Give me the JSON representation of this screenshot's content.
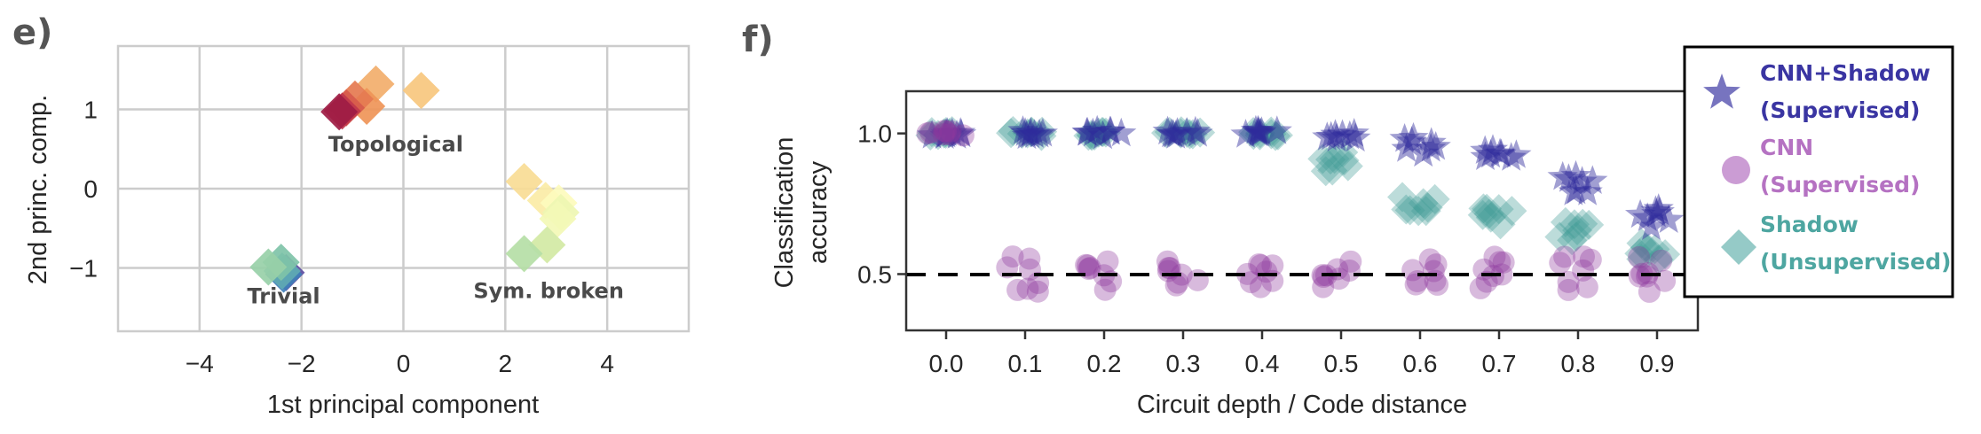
{
  "chart_data": [
    {
      "panel": "e)",
      "type": "scatter",
      "title": "",
      "xlabel": "1st principal component",
      "ylabel": "2nd princ. comp.",
      "xlim": [
        -5.6,
        5.6
      ],
      "ylim": [
        -1.8,
        1.8
      ],
      "xticks": [
        -4,
        -2,
        0,
        2,
        4
      ],
      "xtick_labels": [
        "−4",
        "−2",
        "0",
        "2",
        "4"
      ],
      "yticks": [
        1,
        0,
        -1
      ],
      "ytick_labels": [
        "1",
        "0",
        "−1"
      ],
      "grid": true,
      "marker": "diamond",
      "annotations": [
        {
          "text": "Topological",
          "x": -0.15,
          "y": 0.47
        },
        {
          "text": "Trivial",
          "x": -2.35,
          "y": -1.45
        },
        {
          "text": "Sym. broken",
          "x": 2.85,
          "y": -1.38
        }
      ],
      "clusters": [
        {
          "name": "Trivial",
          "points": [
            {
              "x": -2.3,
              "y": -1.06,
              "color": "#5e4fa2"
            },
            {
              "x": -2.35,
              "y": -1.08,
              "color": "#3f7fb8"
            },
            {
              "x": -2.38,
              "y": -1.04,
              "color": "#5fa9b2"
            },
            {
              "x": -2.4,
              "y": -0.93,
              "color": "#7fc3a8"
            },
            {
              "x": -2.65,
              "y": -0.99,
              "color": "#98d0a8"
            }
          ]
        },
        {
          "name": "Topological",
          "points": [
            {
              "x": 0.35,
              "y": 1.24,
              "color": "#f7c77e"
            },
            {
              "x": -0.54,
              "y": 1.32,
              "color": "#f2ae6b"
            },
            {
              "x": -0.72,
              "y": 1.04,
              "color": "#ef9558"
            },
            {
              "x": -0.95,
              "y": 1.13,
              "color": "#e57a50"
            },
            {
              "x": -1.12,
              "y": 1.02,
              "color": "#d75a4c"
            },
            {
              "x": -1.2,
              "y": 0.98,
              "color": "#c0374c"
            },
            {
              "x": -1.26,
              "y": 0.97,
              "color": "#9e1c44"
            }
          ]
        },
        {
          "name": "Sym. broken",
          "points": [
            {
              "x": 2.37,
              "y": 0.09,
              "color": "#f9dc95"
            },
            {
              "x": 2.79,
              "y": -0.15,
              "color": "#fbeba6"
            },
            {
              "x": 3.05,
              "y": -0.18,
              "color": "#fdfbbd"
            },
            {
              "x": 3.09,
              "y": -0.3,
              "color": "#eef6b2"
            },
            {
              "x": 3.03,
              "y": -0.38,
              "color": "#f3f9b6"
            },
            {
              "x": 2.82,
              "y": -0.71,
              "color": "#d2e9a4"
            },
            {
              "x": 2.37,
              "y": -0.82,
              "color": "#b5dea6"
            }
          ]
        }
      ]
    },
    {
      "panel": "f)",
      "type": "scatter",
      "title": "",
      "xlabel": "Circuit depth / Code distance",
      "ylabel": "Classification accuracy",
      "ylabel_lines": [
        "Classification",
        "accuracy"
      ],
      "x": [
        0.0,
        0.1,
        0.2,
        0.3,
        0.4,
        0.5,
        0.6,
        0.7,
        0.8,
        0.9
      ],
      "xtick_labels": [
        "0.0",
        "0.1",
        "0.2",
        "0.3",
        "0.4",
        "0.5",
        "0.6",
        "0.7",
        "0.8",
        "0.9"
      ],
      "yticks": [
        1.0,
        0.5
      ],
      "ytick_labels": [
        "1.0",
        "0.5"
      ],
      "ylim": [
        0.3,
        1.15
      ],
      "grid": false,
      "reference_line": {
        "y": 0.5,
        "style": "dashed",
        "color": "#000000"
      },
      "legend_position": "upper right, outside",
      "series": [
        {
          "name": "CNN+Shadow (Supervised)",
          "label_lines": [
            "CNN+Shadow",
            "(Supervised)"
          ],
          "marker": "star",
          "color": "#2e2a9c",
          "text_color": "#3a35a2",
          "values": [
            1.0,
            1.0,
            1.0,
            1.0,
            1.0,
            0.99,
            0.96,
            0.93,
            0.82,
            0.7
          ]
        },
        {
          "name": "CNN (Supervised)",
          "label_lines": [
            "CNN",
            "(Supervised)"
          ],
          "marker": "circle",
          "color": "#8e3a9e",
          "text_color": "#b572c2",
          "values": [
            1.0,
            0.5,
            0.5,
            0.5,
            0.5,
            0.49,
            0.5,
            0.51,
            0.5,
            0.5
          ]
        },
        {
          "name": "Shadow (Unsupervised)",
          "label_lines": [
            "Shadow",
            "(Unsupervised)"
          ],
          "marker": "diamond",
          "color": "#3e9a94",
          "text_color": "#4ea6a1",
          "values": [
            1.0,
            1.0,
            1.0,
            1.0,
            1.0,
            0.9,
            0.75,
            0.7,
            0.65,
            0.58
          ]
        }
      ]
    }
  ]
}
